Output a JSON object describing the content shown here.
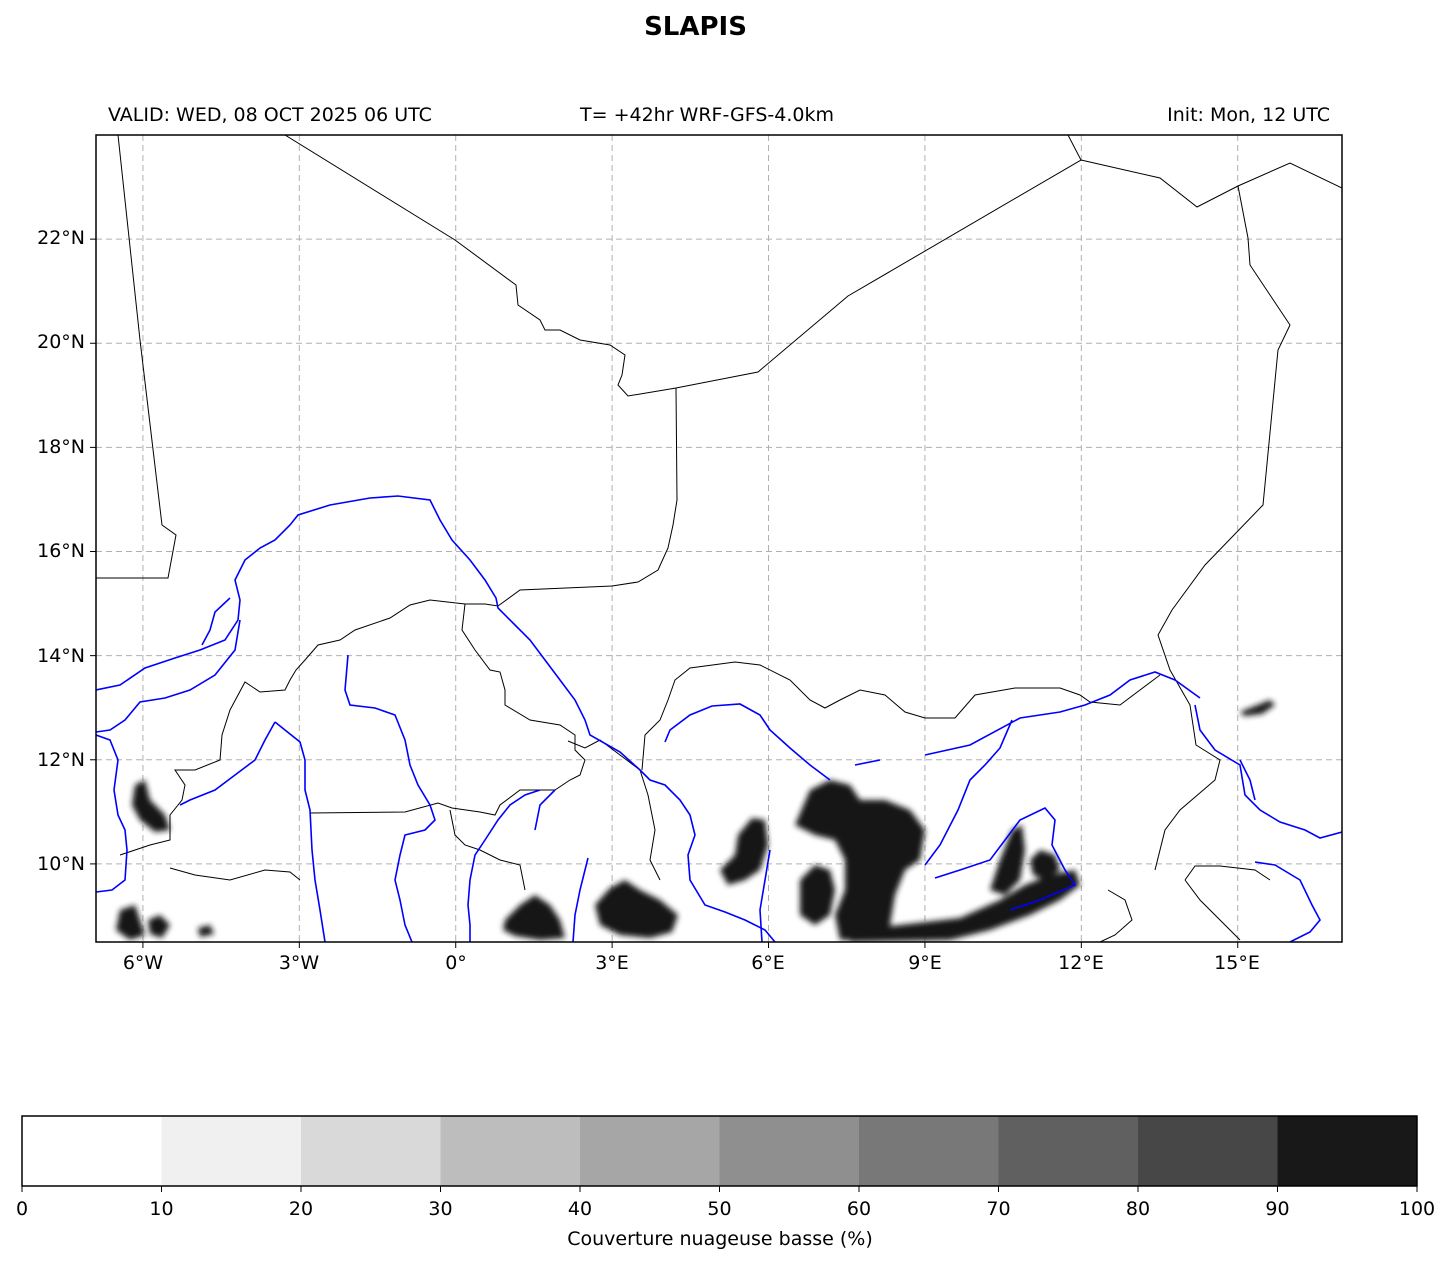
{
  "title": "SLAPIS",
  "header": {
    "valid": "VALID: WED, 08 OCT 2025 06 UTC",
    "model": "T= +42hr WRF-GFS-4.0km",
    "init": "Init: Mon, 12 UTC"
  },
  "map": {
    "lon_range": [
      -6.9,
      17.0
    ],
    "lat_range": [
      8.5,
      24.0
    ],
    "lat_ticks": [
      {
        "value": 10,
        "label": "10°N"
      },
      {
        "value": 12,
        "label": "12°N"
      },
      {
        "value": 14,
        "label": "14°N"
      },
      {
        "value": 16,
        "label": "16°N"
      },
      {
        "value": 18,
        "label": "18°N"
      },
      {
        "value": 20,
        "label": "20°N"
      },
      {
        "value": 22,
        "label": "22°N"
      }
    ],
    "lon_ticks": [
      {
        "value": -6,
        "label": "6°W"
      },
      {
        "value": -3,
        "label": "3°W"
      },
      {
        "value": 0,
        "label": "0°"
      },
      {
        "value": 3,
        "label": "3°E"
      },
      {
        "value": 6,
        "label": "6°E"
      },
      {
        "value": 9,
        "label": "9°E"
      },
      {
        "value": 12,
        "label": "12°E"
      },
      {
        "value": 15,
        "label": "15°E"
      }
    ],
    "gridlines": true,
    "border_color": "#000000",
    "river_color": "#0000ff",
    "cloud_color": "#181818"
  },
  "colorbar": {
    "label": "Couverture nuageuse basse (%)",
    "ticks": [
      "0",
      "10",
      "20",
      "30",
      "40",
      "50",
      "60",
      "70",
      "80",
      "90",
      "100"
    ],
    "colors": [
      "#ffffff",
      "#f0f0f0",
      "#d9d9d9",
      "#bdbdbd",
      "#a6a6a6",
      "#8f8f8f",
      "#787878",
      "#606060",
      "#474747",
      "#181818"
    ]
  }
}
